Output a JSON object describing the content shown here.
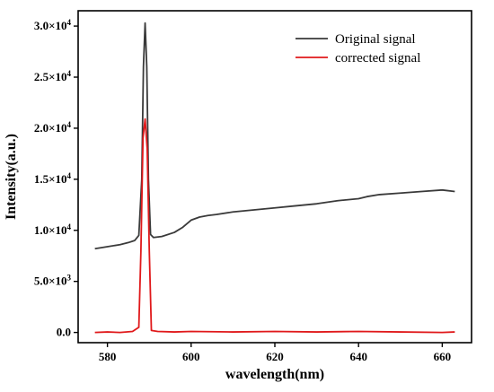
{
  "chart_data": {
    "type": "line",
    "xlabel": "wavelength(nm)",
    "ylabel": "Intensity(a.u.)",
    "xlim": [
      573,
      667
    ],
    "ylim": [
      -1000,
      31500
    ],
    "x_ticks": [
      {
        "value": 580,
        "label": "580"
      },
      {
        "value": 600,
        "label": "600"
      },
      {
        "value": 620,
        "label": "620"
      },
      {
        "value": 640,
        "label": "640"
      },
      {
        "value": 660,
        "label": "660"
      }
    ],
    "y_ticks": [
      {
        "value": 0,
        "base": "0.0",
        "exp": ""
      },
      {
        "value": 5000,
        "base": "5.0×10",
        "exp": "3"
      },
      {
        "value": 10000,
        "base": "1.0×10",
        "exp": "4"
      },
      {
        "value": 15000,
        "base": "1.5×10",
        "exp": "4"
      },
      {
        "value": 20000,
        "base": "2.0×10",
        "exp": "4"
      },
      {
        "value": 25000,
        "base": "2.5×10",
        "exp": "4"
      },
      {
        "value": 30000,
        "base": "3.0×10",
        "exp": "4"
      }
    ],
    "legend_position": "top-right",
    "series": [
      {
        "name": "Original signal",
        "color": "#3a3a3a",
        "x": [
          577,
          580,
          583,
          585,
          586.5,
          587.5,
          588.2,
          588.6,
          589,
          589.4,
          589.8,
          590.3,
          591,
          593,
          596,
          598,
          600,
          602,
          604,
          606,
          610,
          615,
          620,
          625,
          630,
          635,
          640,
          642,
          645,
          650,
          655,
          660,
          663
        ],
        "y": [
          8200,
          8400,
          8600,
          8800,
          9000,
          9500,
          15000,
          26000,
          30300,
          26000,
          15000,
          9600,
          9300,
          9400,
          9800,
          10300,
          11000,
          11300,
          11450,
          11550,
          11800,
          12000,
          12200,
          12400,
          12600,
          12900,
          13100,
          13300,
          13500,
          13650,
          13800,
          13950,
          13800
        ]
      },
      {
        "name": "corrected signal",
        "color": "#e0191b",
        "x": [
          577,
          580,
          583,
          586,
          587.5,
          588,
          588.5,
          589,
          589.5,
          590,
          590.5,
          592,
          596,
          600,
          610,
          620,
          630,
          640,
          650,
          660,
          663
        ],
        "y": [
          0,
          50,
          0,
          100,
          500,
          8000,
          19000,
          20900,
          18000,
          8000,
          200,
          100,
          50,
          100,
          50,
          100,
          50,
          100,
          50,
          0,
          50
        ]
      }
    ]
  }
}
